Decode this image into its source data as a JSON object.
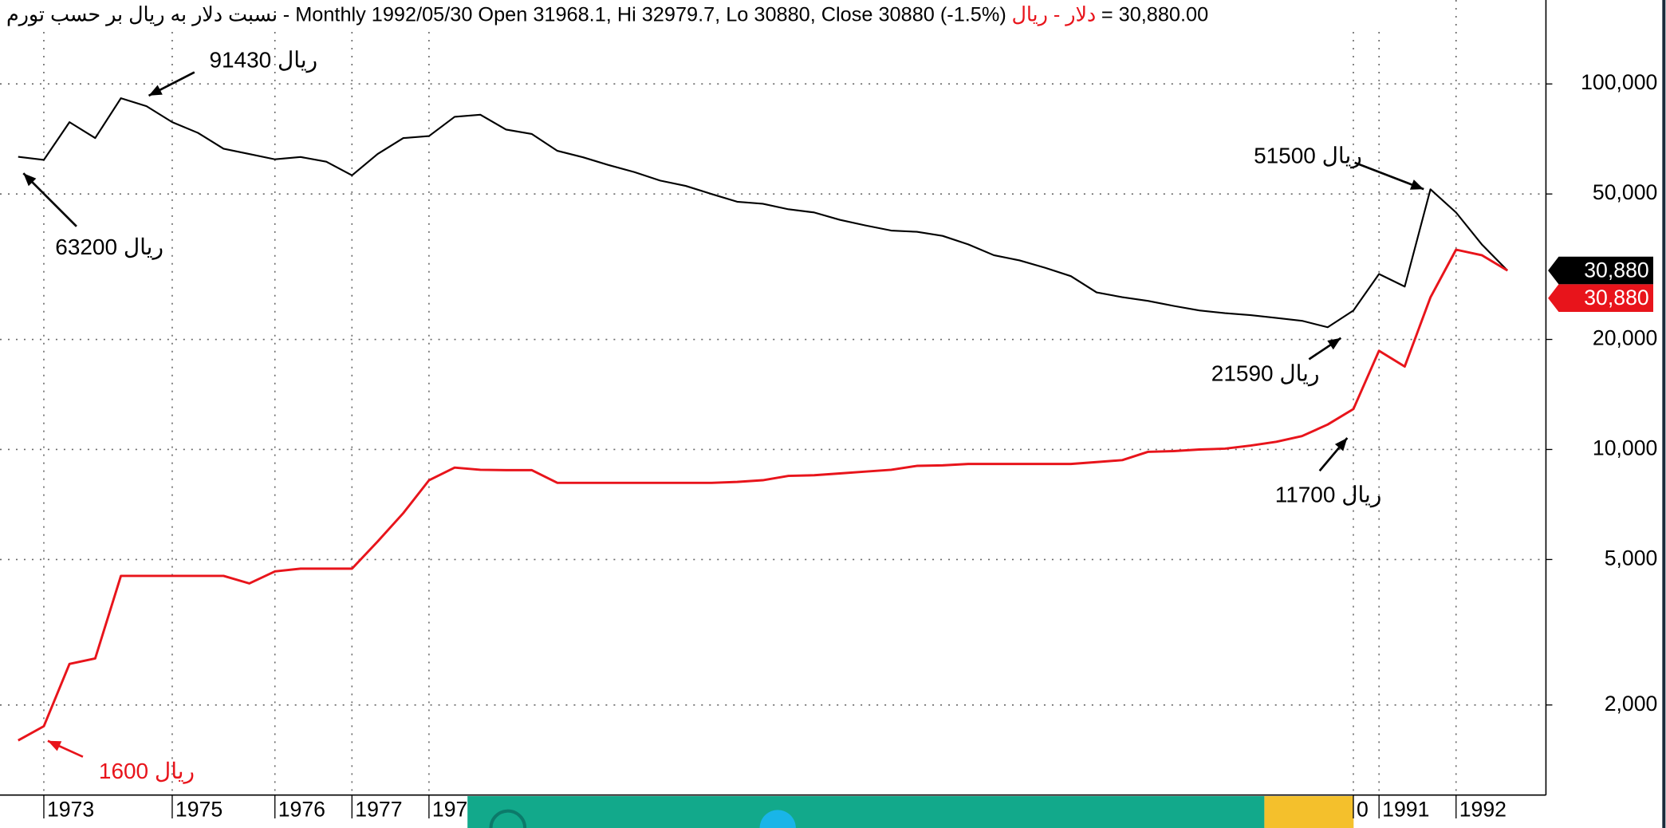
{
  "chart_data": {
    "type": "line",
    "title": "- Monthly 1992/05/30 Open 31968.1, Hi 32979.7, Lo 30880, Close 30880 (-1.5%)",
    "header_value": "= 30,880.00",
    "log_scale": true,
    "grid": true,
    "categories": [
      null,
      "1973",
      null,
      null,
      null,
      null,
      "1975",
      null,
      null,
      null,
      "1976",
      null,
      null,
      "1977",
      null,
      null,
      "197",
      null,
      null,
      null,
      null,
      null,
      null,
      null,
      null,
      null,
      null,
      null,
      null,
      null,
      null,
      null,
      null,
      null,
      null,
      null,
      null,
      null,
      null,
      null,
      null,
      null,
      null,
      null,
      null,
      null,
      null,
      null,
      null,
      null,
      null,
      null,
      "0",
      "1991",
      null,
      null,
      "1992",
      null,
      null
    ],
    "series": [
      {
        "name": "نسبت دلار به ریال بر حسب تورم",
        "color": "#000000",
        "values": [
          63200,
          62000,
          78600,
          71100,
          91430,
          86900,
          78600,
          73500,
          66500,
          64300,
          62200,
          63100,
          61300,
          56200,
          64300,
          71100,
          72000,
          81300,
          82400,
          75000,
          73000,
          65600,
          63000,
          60000,
          57400,
          54400,
          52600,
          50000,
          47600,
          47000,
          45400,
          44500,
          42500,
          41000,
          39700,
          39400,
          38400,
          36400,
          34000,
          32900,
          31400,
          29800,
          26900,
          26100,
          25500,
          24700,
          24000,
          23600,
          23300,
          22900,
          22500,
          21590,
          24000,
          30200,
          27900,
          51500,
          44500,
          36400,
          30880
        ],
        "value_labels": [
          null,
          null,
          null,
          null,
          null,
          null,
          null,
          null,
          null,
          null,
          null,
          null,
          null,
          null,
          null,
          null,
          null,
          null,
          null,
          null,
          null,
          null,
          null,
          null,
          null,
          null,
          null,
          null,
          null,
          null,
          null,
          null,
          null,
          null,
          null,
          null,
          null,
          null,
          null,
          null,
          null,
          null,
          null,
          null,
          null,
          null,
          null,
          null,
          null,
          null,
          null,
          null,
          null,
          null,
          null,
          null,
          null,
          null,
          "30,880"
        ]
      },
      {
        "name": "دلار - ریال",
        "color": "#e8141b",
        "values": [
          1600,
          1750,
          2590,
          2680,
          4510,
          4510,
          4510,
          4510,
          4510,
          4300,
          4640,
          4720,
          4720,
          4720,
          5600,
          6700,
          8240,
          8920,
          8800,
          8780,
          8780,
          8100,
          8100,
          8100,
          8100,
          8100,
          8100,
          8100,
          8150,
          8240,
          8470,
          8500,
          8600,
          8700,
          8800,
          9020,
          9050,
          9130,
          9130,
          9130,
          9130,
          9130,
          9240,
          9350,
          9850,
          9900,
          10000,
          10050,
          10250,
          10500,
          10880,
          11700,
          12900,
          18620,
          16870,
          26060,
          35200,
          34000,
          30880
        ],
        "value_labels": [
          null,
          null,
          null,
          null,
          null,
          null,
          null,
          null,
          null,
          null,
          null,
          null,
          null,
          null,
          null,
          null,
          null,
          null,
          null,
          null,
          null,
          null,
          null,
          null,
          null,
          null,
          null,
          null,
          null,
          null,
          null,
          null,
          null,
          null,
          null,
          null,
          null,
          null,
          null,
          null,
          null,
          null,
          null,
          null,
          null,
          null,
          null,
          null,
          null,
          null,
          null,
          null,
          null,
          null,
          null,
          null,
          null,
          null,
          "30,880"
        ]
      }
    ],
    "ylim": [
      1134,
      138800
    ],
    "yticks": [
      {
        "value": 2000,
        "label": "2,000"
      },
      {
        "value": 5000,
        "label": "5,000"
      },
      {
        "value": 10000,
        "label": "10,000"
      },
      {
        "value": 20000,
        "label": "20,000"
      },
      {
        "value": 50000,
        "label": "50,000"
      },
      {
        "value": 100000,
        "label": "100,000"
      }
    ],
    "annotations": [
      {
        "text": "91430 ریال",
        "color": "#000000"
      },
      {
        "text": "63200 ریال",
        "color": "#000000"
      },
      {
        "text": "51500 ریال",
        "color": "#000000"
      },
      {
        "text": "21590 ریال",
        "color": "#000000"
      },
      {
        "text": "11700 ریال",
        "color": "#000000"
      },
      {
        "text": "1600 ریال",
        "color": "#e8141b"
      }
    ]
  }
}
